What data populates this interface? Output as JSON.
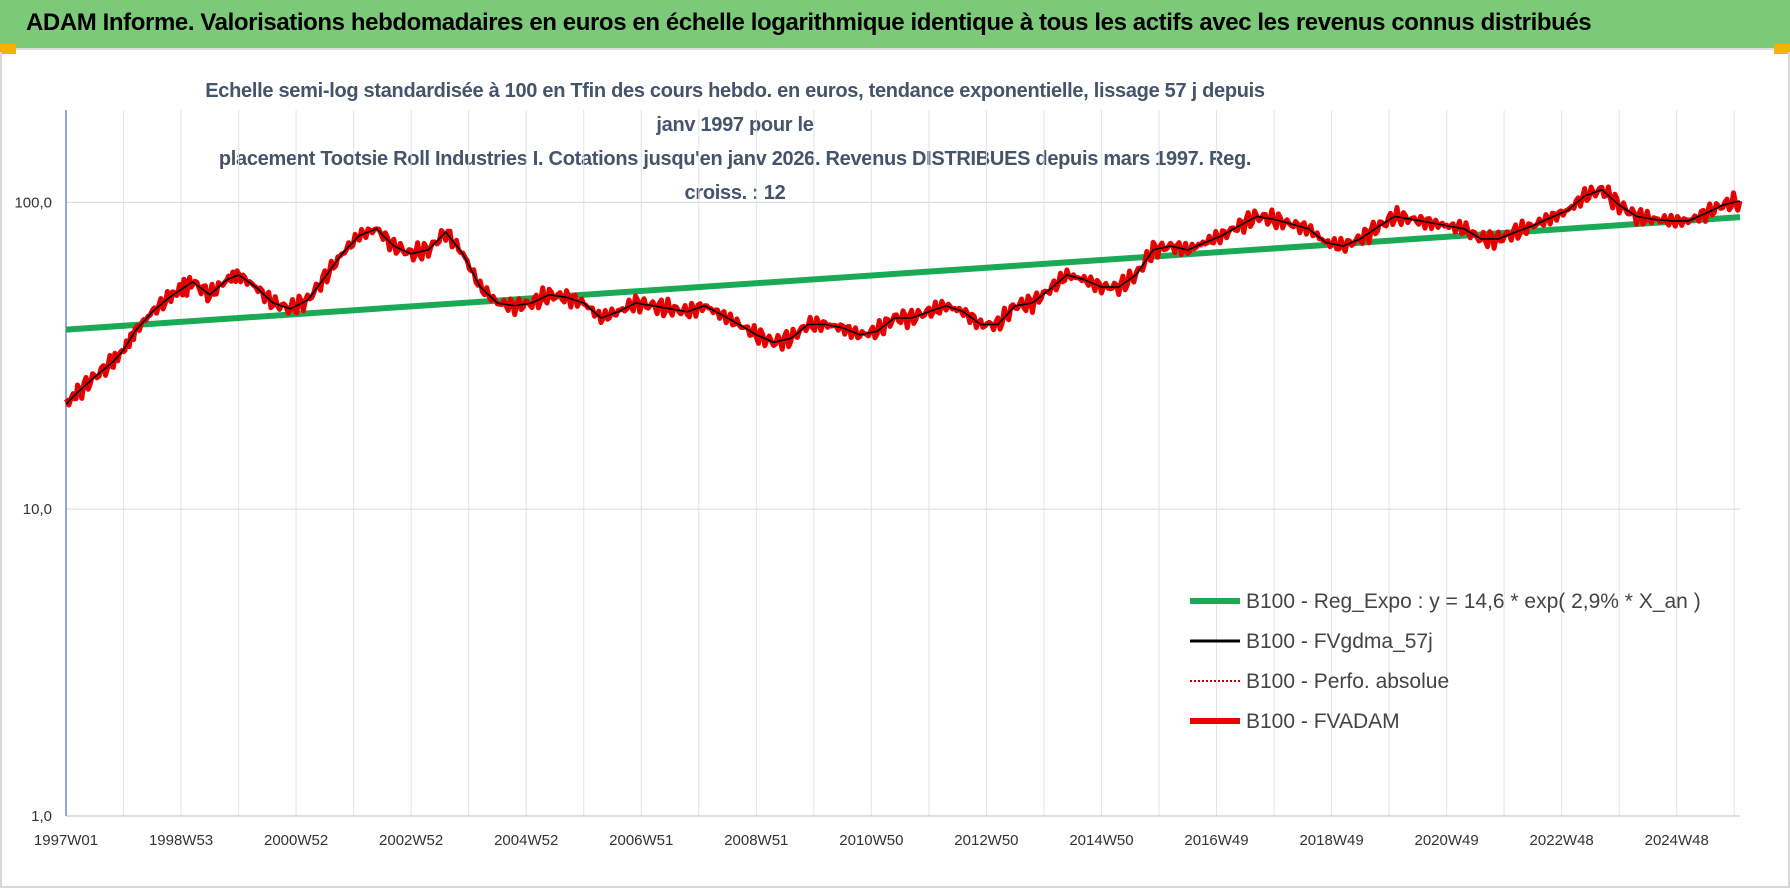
{
  "header": {
    "title": "ADAM Informe. Valorisations hebdomadaires en euros en échelle logarithmique identique à tous les actifs avec les revenus connus distribués"
  },
  "colors": {
    "header_bg": "#7dc97a",
    "trend": "#1aaa55",
    "smooth": "#000000",
    "perf": "#c00000",
    "fvadam": "#ee0000",
    "title_text": "#44546a"
  },
  "chart_data": {
    "type": "line",
    "title_line1": "Echelle semi-log standardisée à 100 en Tfin des cours hebdo. en euros, tendance exponentielle, lissage 57 j depuis janv 1997 pour le",
    "title_line2": "placement Tootsie Roll Industries I. Cotations jusqu'en janv 2026. Revenus DISTRIBUES depuis mars 1997. Reg. croiss. : 12",
    "y_scale": "log",
    "ylim": [
      1,
      200
    ],
    "y_ticks": [
      {
        "value": 1,
        "label": "1,0"
      },
      {
        "value": 10,
        "label": "10,0"
      },
      {
        "value": 100,
        "label": "100,0"
      }
    ],
    "xlim": [
      1997.0,
      2026.1
    ],
    "x_ticks": [
      {
        "value": 1997.0,
        "label": "1997W01"
      },
      {
        "value": 1999.0,
        "label": "1998W53"
      },
      {
        "value": 2001.0,
        "label": "2000W52"
      },
      {
        "value": 2003.0,
        "label": "2002W52"
      },
      {
        "value": 2005.0,
        "label": "2004W52"
      },
      {
        "value": 2007.0,
        "label": "2006W51"
      },
      {
        "value": 2009.0,
        "label": "2008W51"
      },
      {
        "value": 2011.0,
        "label": "2010W50"
      },
      {
        "value": 2013.0,
        "label": "2012W50"
      },
      {
        "value": 2015.0,
        "label": "2014W50"
      },
      {
        "value": 2017.0,
        "label": "2016W49"
      },
      {
        "value": 2019.0,
        "label": "2018W49"
      },
      {
        "value": 2021.0,
        "label": "2020W49"
      },
      {
        "value": 2023.0,
        "label": "2022W48"
      },
      {
        "value": 2025.0,
        "label": "2024W48"
      }
    ],
    "series": [
      {
        "name": "B100 - Reg_Expo : y = 14,6 * exp( 2,9% *  X_an )",
        "kind": "trend",
        "x": [
          1997.0,
          2026.1
        ],
        "values": [
          38.5,
          89.5
        ]
      },
      {
        "name": "B100 - FVgdma_57j",
        "kind": "smooth",
        "x": [
          1997.0,
          1997.2,
          1997.5,
          1997.8,
          1998.0,
          1998.2,
          1998.5,
          1998.8,
          1999.0,
          1999.2,
          1999.5,
          1999.8,
          2000.0,
          2000.3,
          2000.6,
          2000.9,
          2001.2,
          2001.5,
          2001.8,
          2002.1,
          2002.4,
          2002.7,
          2003.0,
          2003.3,
          2003.6,
          2003.9,
          2004.2,
          2004.5,
          2004.8,
          2005.1,
          2005.4,
          2005.7,
          2006.0,
          2006.3,
          2006.6,
          2006.9,
          2007.2,
          2007.5,
          2007.8,
          2008.1,
          2008.4,
          2008.7,
          2009.0,
          2009.3,
          2009.6,
          2009.9,
          2010.2,
          2010.5,
          2010.8,
          2011.1,
          2011.4,
          2011.7,
          2012.0,
          2012.3,
          2012.6,
          2012.9,
          2013.2,
          2013.5,
          2013.8,
          2014.1,
          2014.4,
          2014.7,
          2015.0,
          2015.3,
          2015.6,
          2015.9,
          2016.2,
          2016.5,
          2016.8,
          2017.1,
          2017.4,
          2017.7,
          2018.0,
          2018.3,
          2018.6,
          2018.9,
          2019.2,
          2019.5,
          2019.8,
          2020.1,
          2020.4,
          2020.7,
          2021.0,
          2021.3,
          2021.6,
          2021.9,
          2022.2,
          2022.5,
          2022.8,
          2023.1,
          2023.4,
          2023.7,
          2024.0,
          2024.3,
          2024.6,
          2024.9,
          2025.2,
          2025.5,
          2025.8,
          2026.1
        ],
        "values": [
          22,
          24,
          27,
          30,
          33,
          38,
          44,
          49,
          52,
          55,
          50,
          56,
          58,
          53,
          47,
          45,
          48,
          57,
          68,
          78,
          82,
          72,
          68,
          70,
          80,
          68,
          53,
          47,
          46,
          47,
          50,
          49,
          47,
          42,
          44,
          47,
          46,
          45,
          44,
          46,
          43,
          40,
          37,
          35,
          36,
          40,
          40,
          39,
          37,
          38,
          42,
          42,
          44,
          46,
          44,
          40,
          40,
          46,
          47,
          52,
          58,
          56,
          53,
          53,
          58,
          70,
          72,
          70,
          74,
          78,
          84,
          90,
          88,
          85,
          82,
          74,
          72,
          76,
          83,
          90,
          88,
          86,
          84,
          82,
          76,
          76,
          80,
          84,
          89,
          94,
          105,
          110,
          98,
          90,
          88,
          87,
          87,
          92,
          98,
          101
        ]
      },
      {
        "name": "B100 - Perfo. absolue",
        "kind": "perf"
      },
      {
        "name": "B100 - FVADAM",
        "kind": "fvadam"
      }
    ],
    "legend": [
      {
        "label": "B100 - Reg_Expo : y = 14,6 * exp( 2,9% *  X_an )",
        "color": "#1aaa55",
        "style": "solid-thick"
      },
      {
        "label": "B100 - FVgdma_57j",
        "color": "#000000",
        "style": "solid"
      },
      {
        "label": "B100 - Perfo. absolue",
        "color": "#c00000",
        "style": "dotted"
      },
      {
        "label": "B100 - FVADAM",
        "color": "#ee0000",
        "style": "solid-thick"
      }
    ],
    "legend_position": "bottom-right"
  }
}
